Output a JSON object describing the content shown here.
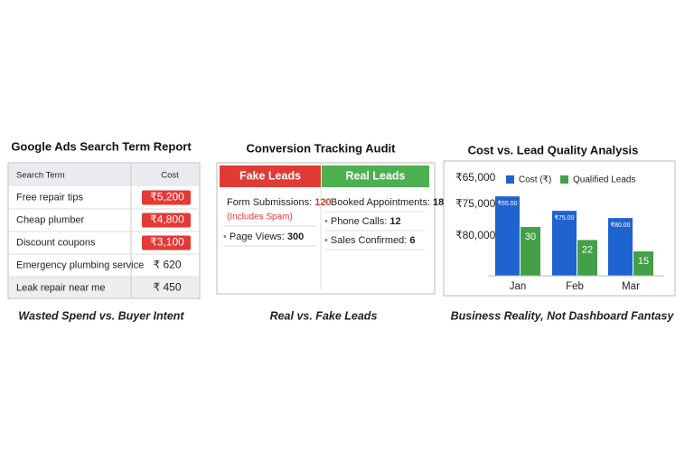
{
  "search_term_report": {
    "title": "Google Ads Search Term Report",
    "headers": [
      "Search Term",
      "Cost"
    ],
    "rows": [
      [
        "Free repair tips",
        "₹5,200"
      ],
      [
        "Cheap plumber",
        "₹4,800"
      ],
      [
        "Discount coupons",
        "₹3,100"
      ],
      [
        "Emergency plumbing service",
        "₹ 620"
      ],
      [
        "Leak repair near me",
        "₹ 450"
      ]
    ],
    "flagged_rows": [
      0,
      1,
      2
    ],
    "flag_color": "#e53935",
    "caption": "Wasted Spend vs. Buyer Intent"
  },
  "conversion_audit": {
    "title": "Conversion Tracking Audit",
    "fake": {
      "heading": "Fake Leads",
      "color": "#e03a34",
      "items": [
        {
          "label": "Form Submissions:",
          "value": 120,
          "note": "(Includes Spam)"
        },
        {
          "label": "Page Views:",
          "value": 300
        }
      ]
    },
    "real": {
      "heading": "Real Leads",
      "color": "#4caf50",
      "items": [
        {
          "label": "Booked Appointments:",
          "value": 18
        },
        {
          "label": "Phone Calls:",
          "value": 12
        },
        {
          "label": "Sales Confirmed:",
          "value": 6
        }
      ]
    },
    "caption": "Real vs. Fake Leads"
  },
  "chart_data": {
    "type": "bar",
    "title": "Cost vs. Lead Quality Analysis",
    "categories": [
      "Jan",
      "Feb",
      "Mar"
    ],
    "series": [
      {
        "name": "Cost (₹)",
        "color": "#1e63d0",
        "values": [
          65,
          75,
          80
        ],
        "value_labels": [
          "₹65.00",
          "₹75.00",
          "₹80.00"
        ],
        "axis": "y2"
      },
      {
        "name": "Qualified Leads",
        "color": "#43a047",
        "values": [
          30,
          22,
          15
        ]
      }
    ],
    "ylim": [
      0,
      55
    ],
    "y2lim": [
      120,
      58
    ],
    "y_axis_labels": [
      "₹65,000",
      "₹75,000",
      "₹80,000"
    ],
    "caption": "Business Reality, Not Dashboard Fantasy"
  }
}
